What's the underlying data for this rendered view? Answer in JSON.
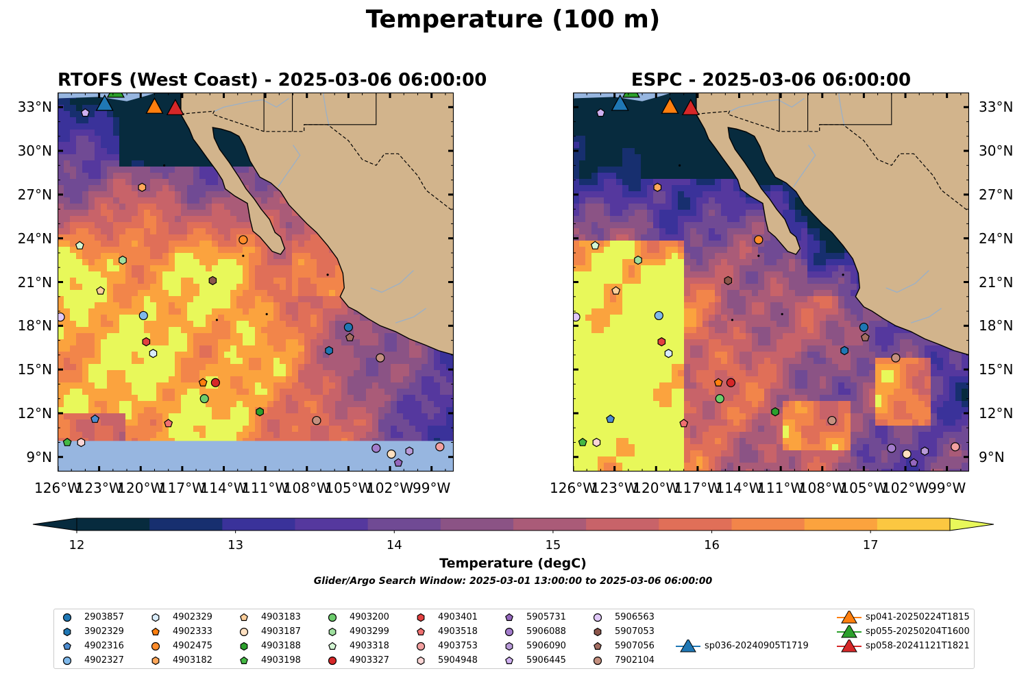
{
  "title": "Temperature (100 m)",
  "colorbar": {
    "label": "Temperature (degC)",
    "ticks": [
      "12",
      "13",
      "14",
      "15",
      "16",
      "17"
    ],
    "min": 12,
    "max": 17.5,
    "step": 0.5,
    "colors": [
      "#072b3e",
      "#172f6f",
      "#3a329a",
      "#55389e",
      "#704a94",
      "#8b5385",
      "#aa5b78",
      "#c86369",
      "#e06f58",
      "#f2854a",
      "#fba33e",
      "#fbc741"
    ],
    "extend_low": "#072b3e",
    "extend_high": "#e8f85a"
  },
  "search_window": "Glider/Argo Search Window: 2025-03-01 13:00:00 to 2025-03-06 06:00:00",
  "colors": {
    "land": "#d2b48c",
    "nodata": "#97b6e0",
    "river": "#9ab0c8",
    "high": "#e8f85a"
  },
  "panels": [
    {
      "id": "rtofs",
      "title": "RTOFS (West Coast) - 2025-03-06 06:00:00"
    },
    {
      "id": "espc",
      "title": "ESPC - 2025-03-06 06:00:00"
    }
  ],
  "axes": {
    "lon_min": -126,
    "lon_max": -97.4,
    "lat_min": 8,
    "lat_max": 34,
    "y_ticks": [
      "9°N",
      "12°N",
      "15°N",
      "18°N",
      "21°N",
      "24°N",
      "27°N",
      "30°N",
      "33°N"
    ],
    "x_ticks": [
      "126°W",
      "123°W",
      "120°W",
      "117°W",
      "114°W",
      "111°W",
      "108°W",
      "105°W",
      "102°W",
      "99°W"
    ]
  },
  "markers": [
    {
      "id": "2903857",
      "shape": "circle",
      "color": "#1f77b4",
      "lon": -105.0,
      "lat": 17.9
    },
    {
      "id": "3902329",
      "shape": "hexagon",
      "color": "#1f77b4",
      "lon": -106.4,
      "lat": 16.3
    },
    {
      "id": "4902316",
      "shape": "pentagon",
      "color": "#4d8ccf",
      "lon": -123.3,
      "lat": 11.6
    },
    {
      "id": "4902327",
      "shape": "circle",
      "color": "#7fb8ea",
      "lon": -119.8,
      "lat": 18.7
    },
    {
      "id": "4902329",
      "shape": "hexagon",
      "color": "#d9ecfb",
      "lon": -119.1,
      "lat": 16.1
    },
    {
      "id": "4902333",
      "shape": "pentagon",
      "color": "#ff7f0e",
      "lon": -115.5,
      "lat": 14.1
    },
    {
      "id": "4902475",
      "shape": "circle",
      "color": "#ff8c2a",
      "lon": -112.6,
      "lat": 23.9
    },
    {
      "id": "4903182",
      "shape": "hexagon",
      "color": "#ffa75a",
      "lon": -119.9,
      "lat": 27.5
    },
    {
      "id": "4903183",
      "shape": "pentagon",
      "color": "#ffcf9b",
      "lon": -122.9,
      "lat": 20.4
    },
    {
      "id": "4903187",
      "shape": "circle",
      "color": "#ffe0c0",
      "lon": -101.9,
      "lat": 9.2
    },
    {
      "id": "4903188",
      "shape": "hexagon",
      "color": "#2ca02c",
      "lon": -111.4,
      "lat": 12.1
    },
    {
      "id": "4903198",
      "shape": "pentagon",
      "color": "#44b844",
      "lon": -125.3,
      "lat": 10.0
    },
    {
      "id": "4903200",
      "shape": "circle",
      "color": "#6ccc6c",
      "lon": -115.4,
      "lat": 13.0
    },
    {
      "id": "4903299",
      "shape": "hexagon",
      "color": "#9fe09f",
      "lon": -121.3,
      "lat": 22.5
    },
    {
      "id": "4903318",
      "shape": "pentagon",
      "color": "#d4f7d4",
      "lon": -124.4,
      "lat": 23.5
    },
    {
      "id": "4903327",
      "shape": "circle",
      "color": "#d62728",
      "lon": -114.6,
      "lat": 14.1
    },
    {
      "id": "4903401",
      "shape": "hexagon",
      "color": "#e34040",
      "lon": -119.6,
      "lat": 16.9
    },
    {
      "id": "4903518",
      "shape": "pentagon",
      "color": "#f07070",
      "lon": -118.0,
      "lat": 11.3
    },
    {
      "id": "4903753",
      "shape": "circle",
      "color": "#f2a0a0",
      "lon": -98.4,
      "lat": 9.7
    },
    {
      "id": "5904948",
      "shape": "hexagon",
      "color": "#fbd5d5",
      "lon": -124.3,
      "lat": 10.0
    },
    {
      "id": "5905731",
      "shape": "pentagon",
      "color": "#9467bd",
      "lon": -101.4,
      "lat": 8.6
    },
    {
      "id": "5906088",
      "shape": "circle",
      "color": "#a37ccc",
      "lon": -103.0,
      "lat": 9.6
    },
    {
      "id": "5906090",
      "shape": "hexagon",
      "color": "#b89ad8",
      "lon": -100.6,
      "lat": 9.4
    },
    {
      "id": "5906445",
      "shape": "pentagon",
      "color": "#cfb0f0",
      "lon": -124.0,
      "lat": 32.6
    },
    {
      "id": "5906563",
      "shape": "circle",
      "color": "#e0c8f8",
      "lon": -125.8,
      "lat": 18.6
    },
    {
      "id": "5907053",
      "shape": "hexagon",
      "color": "#8c564b",
      "lon": -114.8,
      "lat": 21.1
    },
    {
      "id": "5907056",
      "shape": "pentagon",
      "color": "#a46e62",
      "lon": -104.9,
      "lat": 17.2
    },
    {
      "id": "7902104",
      "shape": "circle",
      "color": "#c4907f",
      "lon": -102.7,
      "lat": 15.8
    },
    {
      "id": "7902104b",
      "shape": "circle",
      "color": "#c4907f",
      "lon": -107.3,
      "lat": 11.5
    }
  ],
  "gliders": [
    {
      "id": "sp036-20240905T1719",
      "color": "#1f77b4",
      "lon": -122.6,
      "lat": 33.2
    },
    {
      "id": "sp041-20250224T1815",
      "color": "#ff7f0e",
      "lon": -119.0,
      "lat": 33.0
    },
    {
      "id": "sp055-20250204T1600",
      "color": "#2ca02c",
      "lon": -121.8,
      "lat": 34.1
    },
    {
      "id": "sp058-20241121T1821",
      "color": "#d62728",
      "lon": -117.5,
      "lat": 32.9
    }
  ],
  "legend": [
    {
      "label": "2903857",
      "shape": "circle",
      "color": "#1f77b4"
    },
    {
      "label": "3902329",
      "shape": "hexagon",
      "color": "#1f77b4"
    },
    {
      "label": "4902316",
      "shape": "pentagon",
      "color": "#4d8ccf"
    },
    {
      "label": "4902327",
      "shape": "circle",
      "color": "#7fb8ea"
    },
    {
      "label": "4902329",
      "shape": "hexagon",
      "color": "#d9ecfb"
    },
    {
      "label": "4902333",
      "shape": "pentagon",
      "color": "#ff7f0e"
    },
    {
      "label": "4902475",
      "shape": "circle",
      "color": "#ff8c2a"
    },
    {
      "label": "4903182",
      "shape": "hexagon",
      "color": "#ffa75a"
    },
    {
      "label": "4903183",
      "shape": "pentagon",
      "color": "#ffcf9b"
    },
    {
      "label": "4903187",
      "shape": "circle",
      "color": "#ffe0c0"
    },
    {
      "label": "4903188",
      "shape": "hexagon",
      "color": "#2ca02c"
    },
    {
      "label": "4903198",
      "shape": "pentagon",
      "color": "#44b844"
    },
    {
      "label": "4903200",
      "shape": "circle",
      "color": "#6ccc6c"
    },
    {
      "label": "4903299",
      "shape": "hexagon",
      "color": "#9fe09f"
    },
    {
      "label": "4903318",
      "shape": "pentagon",
      "color": "#d4f7d4"
    },
    {
      "label": "4903327",
      "shape": "circle",
      "color": "#d62728"
    },
    {
      "label": "4903401",
      "shape": "hexagon",
      "color": "#e34040"
    },
    {
      "label": "4903518",
      "shape": "pentagon",
      "color": "#f07070"
    },
    {
      "label": "4903753",
      "shape": "circle",
      "color": "#f2a0a0"
    },
    {
      "label": "5904948",
      "shape": "hexagon",
      "color": "#fbd5d5"
    },
    {
      "label": "5905731",
      "shape": "pentagon",
      "color": "#9467bd"
    },
    {
      "label": "5906088",
      "shape": "circle",
      "color": "#a37ccc"
    },
    {
      "label": "5906090",
      "shape": "hexagon",
      "color": "#b89ad8"
    },
    {
      "label": "5906445",
      "shape": "pentagon",
      "color": "#cfb0f0"
    },
    {
      "label": "5906563",
      "shape": "circle",
      "color": "#e0c8f8"
    },
    {
      "label": "5907053",
      "shape": "hexagon",
      "color": "#8c564b"
    },
    {
      "label": "5907056",
      "shape": "pentagon",
      "color": "#a46e62"
    },
    {
      "label": "7902104",
      "shape": "circle",
      "color": "#c4907f"
    },
    {
      "label": "sp036-20240905T1719",
      "shape": "triangle",
      "color": "#1f77b4"
    },
    {
      "label": "sp041-20250224T1815",
      "shape": "triangle",
      "color": "#ff7f0e"
    },
    {
      "label": "sp055-20250204T1600",
      "shape": "triangle",
      "color": "#2ca02c"
    },
    {
      "label": "sp058-20241121T1821",
      "shape": "triangle",
      "color": "#d62728"
    }
  ]
}
